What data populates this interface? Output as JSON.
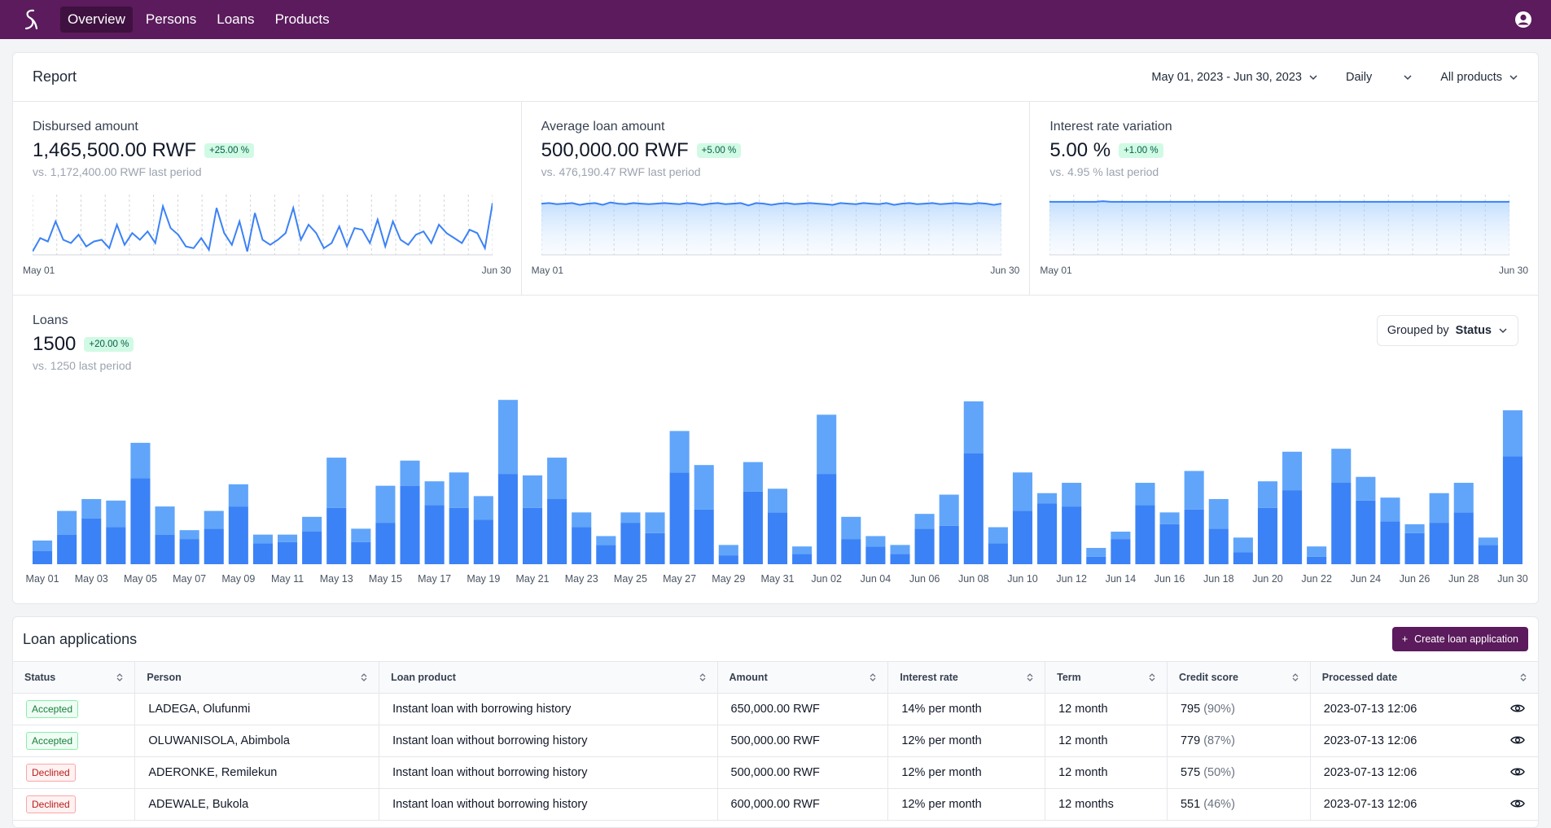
{
  "nav": {
    "items": [
      {
        "label": "Overview",
        "active": true
      },
      {
        "label": "Persons",
        "active": false
      },
      {
        "label": "Loans",
        "active": false
      },
      {
        "label": "Products",
        "active": false
      }
    ],
    "logo_icon": "logo-s-icon",
    "user_icon": "user-circle-icon",
    "color": "#5b1b5d"
  },
  "report": {
    "title": "Report",
    "date_range": "May 01, 2023 - Jun 30, 2023",
    "interval": "Daily",
    "product_filter": "All products"
  },
  "metrics": [
    {
      "label": "Disbursed amount",
      "value": "1,465,500.00 RWF",
      "change": "+25.00 %",
      "comparison": "vs. 1,172,400.00 RWF last period",
      "x_start": "May 01",
      "x_end": "Jun 30"
    },
    {
      "label": "Average loan amount",
      "value": "500,000.00 RWF",
      "change": "+5.00 %",
      "comparison": "vs. 476,190.47 RWF last period",
      "x_start": "May 01",
      "x_end": "Jun 30"
    },
    {
      "label": "Interest rate variation",
      "value": "5.00 %",
      "change": "+1.00 %",
      "comparison": "vs. 4.95 % last period",
      "x_start": "May 01",
      "x_end": "Jun 30"
    }
  ],
  "loans": {
    "label": "Loans",
    "value": "1500",
    "change": "+20.00 %",
    "comparison": "vs. 1250 last period",
    "group_prefix": "Grouped by",
    "group_value": "Status"
  },
  "chart_data": [
    {
      "type": "line",
      "series": [
        {
          "values": [
            2,
            10,
            8,
            20,
            9,
            7,
            12,
            5,
            8,
            9,
            4,
            18,
            6,
            13,
            9,
            14,
            7,
            29,
            16,
            12,
            5,
            4,
            10,
            3,
            28,
            13,
            6,
            20,
            2,
            25,
            9,
            6,
            9,
            13,
            28,
            9,
            18,
            13,
            4,
            7,
            17,
            5,
            16,
            15,
            7,
            21,
            5,
            20,
            9,
            6,
            12,
            14,
            7,
            18,
            13,
            10,
            7,
            15,
            13,
            4,
            31
          ]
        }
      ],
      "x_start": "May 01",
      "x_end": "Jun 30",
      "color": "#3b82f6"
    },
    {
      "type": "area",
      "series": [
        {
          "values": [
            85,
            86,
            84,
            85,
            86,
            83,
            85,
            86,
            83,
            87,
            85,
            84,
            86,
            85,
            84,
            85,
            86,
            85,
            84,
            86,
            85,
            83,
            85,
            86,
            84,
            85,
            86,
            82,
            86,
            85,
            83,
            85,
            86,
            84,
            85,
            86,
            85,
            84,
            83,
            86,
            85,
            84,
            86,
            85,
            84,
            86,
            83,
            85,
            86,
            84,
            85,
            86,
            84,
            85,
            86,
            85,
            84,
            86,
            85,
            83,
            85
          ]
        }
      ],
      "x_start": "May 01",
      "x_end": "Jun 30",
      "color": "#3b82f6"
    },
    {
      "type": "area",
      "series": [
        {
          "values": [
            88,
            88,
            88,
            88,
            88,
            88,
            88,
            89,
            88,
            88,
            88,
            88,
            88,
            88,
            88,
            88,
            88,
            88,
            88,
            88,
            88,
            88,
            88,
            88,
            88,
            88,
            88,
            88,
            88,
            88,
            88,
            88,
            88,
            88,
            88,
            88,
            88,
            88,
            88,
            88,
            88,
            88,
            88,
            88,
            88,
            88,
            88,
            88,
            88,
            88,
            88,
            88,
            88,
            88,
            88,
            88,
            88,
            88,
            88,
            88,
            88
          ]
        }
      ],
      "x_start": "May 01",
      "x_end": "Jun 30",
      "color": "#3b82f6"
    },
    {
      "type": "bar",
      "stacked": true,
      "categories": [
        "May 01",
        "May 02",
        "May 03",
        "May 04",
        "May 05",
        "May 06",
        "May 07",
        "May 08",
        "May 09",
        "May 10",
        "May 11",
        "May 12",
        "May 13",
        "May 14",
        "May 15",
        "May 16",
        "May 17",
        "May 18",
        "May 19",
        "May 20",
        "May 21",
        "May 22",
        "May 23",
        "May 24",
        "May 25",
        "May 26",
        "May 27",
        "May 28",
        "May 29",
        "May 30",
        "May 31",
        "Jun 01",
        "Jun 02",
        "Jun 03",
        "Jun 04",
        "Jun 05",
        "Jun 06",
        "Jun 07",
        "Jun 08",
        "Jun 09",
        "Jun 10",
        "Jun 11",
        "Jun 12",
        "Jun 13",
        "Jun 14",
        "Jun 15",
        "Jun 16",
        "Jun 17",
        "Jun 18",
        "Jun 19",
        "Jun 20",
        "Jun 21",
        "Jun 22",
        "Jun 23",
        "Jun 24",
        "Jun 25",
        "Jun 26",
        "Jun 27",
        "Jun 28",
        "Jun 29",
        "Jun 30"
      ],
      "tick_labels": [
        "May 01",
        "May 03",
        "May 05",
        "May 07",
        "May 09",
        "May 11",
        "May 13",
        "May 15",
        "May 17",
        "May 19",
        "May 21",
        "May 23",
        "May 25",
        "May 27",
        "May 29",
        "May 31",
        "Jun 02",
        "Jun 04",
        "Jun 06",
        "Jun 08",
        "Jun 10",
        "Jun 12",
        "Jun 14",
        "Jun 16",
        "Jun 18",
        "Jun 20",
        "Jun 22",
        "Jun 24",
        "Jun 26",
        "Jun 28",
        "Jun 30"
      ],
      "series": [
        {
          "values": [
            9,
            20,
            31,
            25,
            58,
            20,
            17,
            24,
            39,
            14,
            15,
            22,
            38,
            15,
            28,
            53,
            40,
            38,
            30,
            61,
            38,
            44,
            25,
            13,
            28,
            21,
            62,
            37,
            6,
            49,
            35,
            7,
            61,
            17,
            12,
            7,
            24,
            26,
            75,
            14,
            36,
            41,
            39,
            5,
            17,
            40,
            27,
            37,
            24,
            8,
            38,
            50,
            5,
            55,
            43,
            29,
            21,
            28,
            35,
            13,
            73
          ],
          "color": "#3b82f6"
        },
        {
          "values": [
            7,
            16,
            13,
            18,
            24,
            19,
            6,
            12,
            15,
            6,
            5,
            10,
            34,
            9,
            25,
            17,
            16,
            24,
            16,
            50,
            22,
            28,
            10,
            6,
            7,
            14,
            28,
            30,
            7,
            20,
            16,
            5,
            40,
            15,
            7,
            6,
            10,
            21,
            35,
            11,
            26,
            7,
            16,
            6,
            5,
            15,
            8,
            26,
            20,
            10,
            18,
            26,
            7,
            23,
            16,
            16,
            6,
            20,
            20,
            5,
            31
          ],
          "color": "#60a5fa"
        }
      ]
    }
  ],
  "applications": {
    "title": "Loan applications",
    "create_label": "Create loan application",
    "columns": [
      "Status",
      "Person",
      "Loan product",
      "Amount",
      "Interest rate",
      "Term",
      "Credit score",
      "Processed date"
    ],
    "rows": [
      {
        "status": "Accepted",
        "status_kind": "accepted",
        "person": "LADEGA, Olufunmi",
        "product": "Instant loan with borrowing history",
        "amount": "650,000.00 RWF",
        "rate": "14% per month",
        "term": "12 month",
        "score": "795",
        "score_pct": "(90%)",
        "date": "2023-07-13 12:06"
      },
      {
        "status": "Accepted",
        "status_kind": "accepted",
        "person": "OLUWANISOLA, Abimbola",
        "product": "Instant loan without borrowing history",
        "amount": "500,000.00 RWF",
        "rate": "12% per month",
        "term": "12 month",
        "score": "779",
        "score_pct": "(87%)",
        "date": "2023-07-13 12:06"
      },
      {
        "status": "Declined",
        "status_kind": "declined",
        "person": "ADERONKE, Remilekun",
        "product": "Instant loan without borrowing history",
        "amount": "500,000.00 RWF",
        "rate": "12% per month",
        "term": "12 month",
        "score": "575",
        "score_pct": "(50%)",
        "date": "2023-07-13 12:06"
      },
      {
        "status": "Declined",
        "status_kind": "declined",
        "person": "ADEWALE, Bukola",
        "product": "Instant loan without borrowing history",
        "amount": "600,000.00 RWF",
        "rate": "12% per month",
        "term": "12 months",
        "score": "551",
        "score_pct": "(46%)",
        "date": "2023-07-13 12:06"
      }
    ]
  }
}
